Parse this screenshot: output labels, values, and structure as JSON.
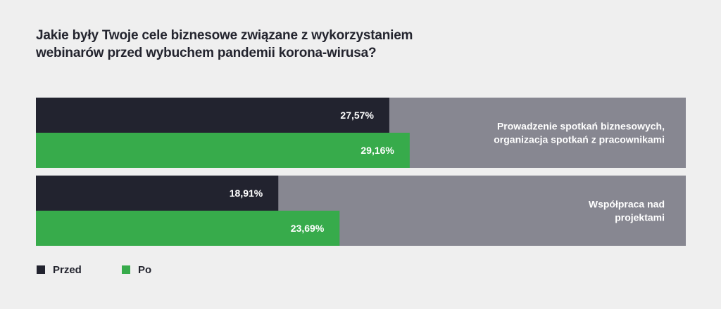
{
  "title_lines": [
    "Jakie były Twoje cele biznesowe związane z wykorzystaniem",
    "webinarów przed wybuchem pandemii korona-wirusa?"
  ],
  "colors": {
    "background": "#efefef",
    "track": "#878791",
    "przed": "#22232f",
    "po": "#37ab4b",
    "label_text": "#ffffff"
  },
  "chart_data": {
    "type": "bar",
    "orientation": "horizontal",
    "xlim": [
      0,
      50.7
    ],
    "categories": [
      [
        "Prowadzenie spotkań biznesowych,",
        "organizacja spotkań z pracownikami"
      ],
      [
        "Współpraca nad",
        "projektami"
      ]
    ],
    "series": [
      {
        "name": "Przed",
        "values": [
          27.57,
          18.91
        ],
        "labels": [
          "27,57%",
          "18,91%"
        ]
      },
      {
        "name": "Po",
        "values": [
          29.16,
          23.69
        ],
        "labels": [
          "29,16%",
          "23,69%"
        ]
      }
    ],
    "legend": "bottom-left"
  },
  "legend": {
    "przed": "Przed",
    "po": "Po"
  }
}
